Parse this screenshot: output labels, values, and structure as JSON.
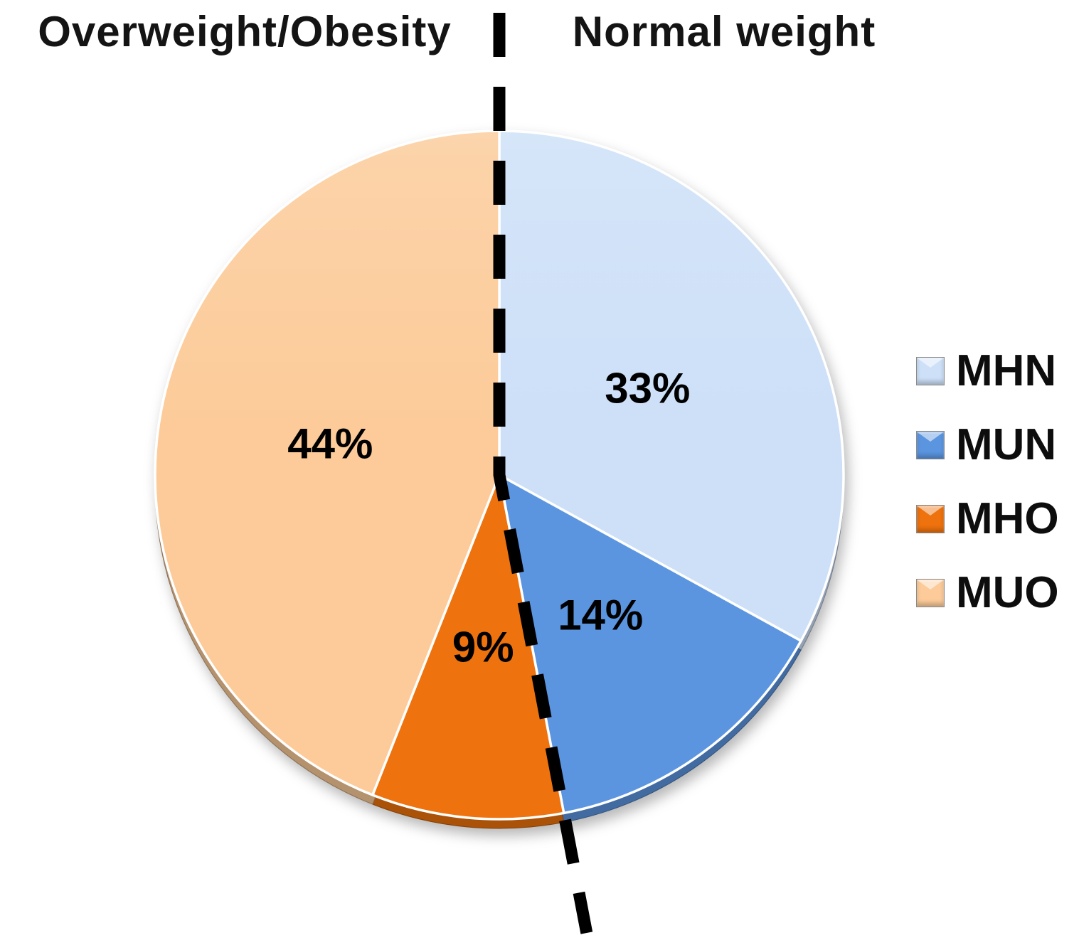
{
  "header": {
    "left_label": "Overweight/Obesity",
    "right_label": "Normal weight"
  },
  "chart_data": {
    "type": "pie",
    "title": "",
    "start_angle_deg": 0,
    "direction": "clockwise",
    "legend_position": "right",
    "slices": [
      {
        "label": "MHN",
        "value": 33,
        "value_label": "33%",
        "color": "#CDE0F8",
        "group": "Normal weight"
      },
      {
        "label": "MUN",
        "value": 14,
        "value_label": "14%",
        "color": "#5B95E0",
        "group": "Normal weight"
      },
      {
        "label": "MHO",
        "value": 9,
        "value_label": "9%",
        "color": "#EE720D",
        "group": "Overweight/Obesity"
      },
      {
        "label": "MUO",
        "value": 44,
        "value_label": "44%",
        "color": "#FCCB99",
        "group": "Overweight/Obesity"
      }
    ],
    "annotations": {
      "divider_style": "dashed",
      "divider_color": "#000000",
      "divider_top_between": [
        "MUO",
        "MHN"
      ],
      "divider_bottom_after_slice": "MUN"
    }
  },
  "colors": {
    "background": "#FFFFFF",
    "label_text": "#000000",
    "title_text": "#141414"
  }
}
